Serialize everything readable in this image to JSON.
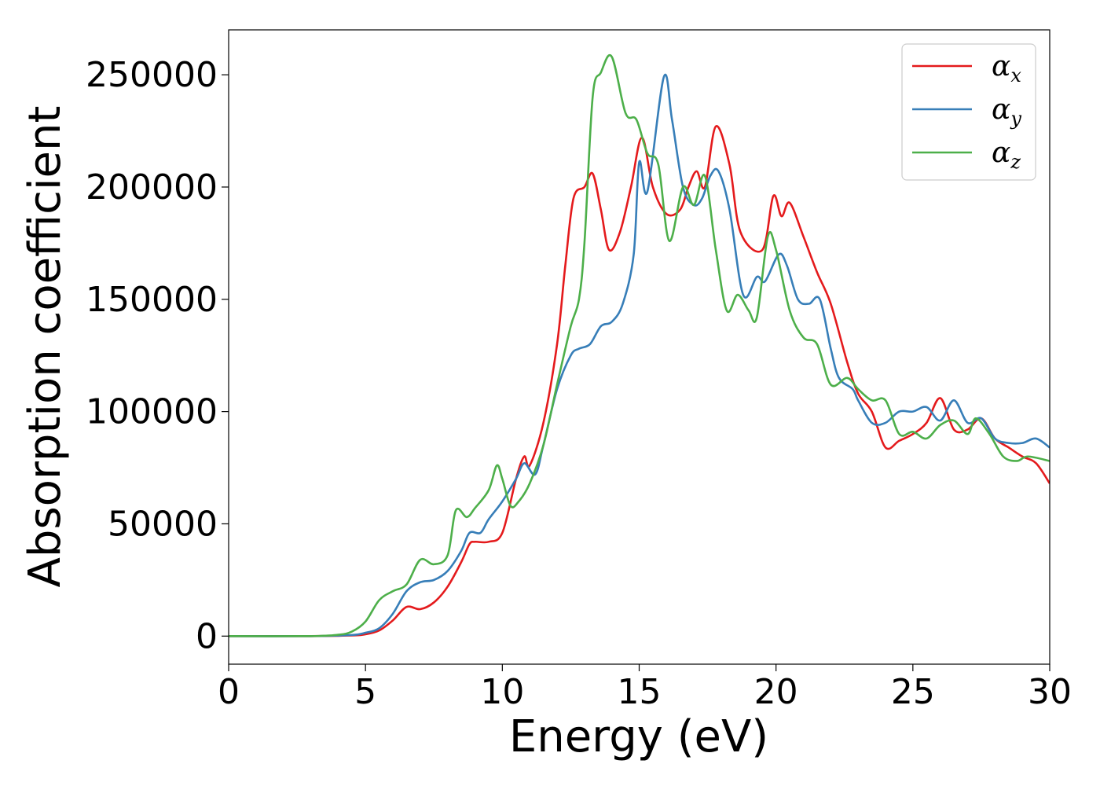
{
  "chart_data": {
    "type": "line",
    "xlabel": "Energy (eV)",
    "ylabel": "Absorption coefficient",
    "xlim": [
      0,
      30
    ],
    "ylim": [
      -12500,
      270000
    ],
    "xticks": [
      0,
      5,
      10,
      15,
      20,
      25,
      30
    ],
    "xtick_labels": [
      "0",
      "5",
      "10",
      "15",
      "20",
      "25",
      "30"
    ],
    "yticks": [
      0,
      50000,
      100000,
      150000,
      200000,
      250000
    ],
    "ytick_labels": [
      "0",
      "50000",
      "100000",
      "150000",
      "200000",
      "250000"
    ],
    "grid": false,
    "legend_position": "top-right",
    "series": [
      {
        "name": "α",
        "subscript": "x",
        "color": "#e41a1c",
        "points": [
          [
            0,
            0
          ],
          [
            3,
            0
          ],
          [
            4.5,
            300
          ],
          [
            5,
            800
          ],
          [
            5.5,
            2500
          ],
          [
            6,
            7000
          ],
          [
            6.5,
            13000
          ],
          [
            7,
            12000
          ],
          [
            7.5,
            15000
          ],
          [
            8,
            22000
          ],
          [
            8.5,
            33000
          ],
          [
            8.8,
            41000
          ],
          [
            9,
            42000
          ],
          [
            9.5,
            42000
          ],
          [
            10,
            46000
          ],
          [
            10.5,
            70000
          ],
          [
            10.8,
            80000
          ],
          [
            11,
            76000
          ],
          [
            11.5,
            95000
          ],
          [
            12,
            130000
          ],
          [
            12.3,
            165000
          ],
          [
            12.6,
            195000
          ],
          [
            13,
            200000
          ],
          [
            13.3,
            206000
          ],
          [
            13.6,
            190000
          ],
          [
            13.9,
            172000
          ],
          [
            14.3,
            180000
          ],
          [
            14.7,
            200000
          ],
          [
            15.1,
            222000
          ],
          [
            15.5,
            200000
          ],
          [
            16,
            188000
          ],
          [
            16.5,
            190000
          ],
          [
            16.8,
            200000
          ],
          [
            17.1,
            207000
          ],
          [
            17.4,
            200000
          ],
          [
            17.8,
            227000
          ],
          [
            18.3,
            210000
          ],
          [
            18.7,
            180000
          ],
          [
            19.5,
            172000
          ],
          [
            19.9,
            196000
          ],
          [
            20.2,
            187000
          ],
          [
            20.5,
            193000
          ],
          [
            21,
            178000
          ],
          [
            21.5,
            162000
          ],
          [
            22,
            148000
          ],
          [
            22.6,
            122000
          ],
          [
            23,
            108000
          ],
          [
            23.5,
            100000
          ],
          [
            24,
            84000
          ],
          [
            24.5,
            87000
          ],
          [
            25,
            90000
          ],
          [
            25.5,
            95000
          ],
          [
            26,
            106000
          ],
          [
            26.5,
            92000
          ],
          [
            27,
            92000
          ],
          [
            27.5,
            97000
          ],
          [
            28,
            88000
          ],
          [
            28.5,
            84000
          ],
          [
            29,
            80000
          ],
          [
            29.5,
            77000
          ],
          [
            30,
            68000
          ]
        ]
      },
      {
        "name": "α",
        "subscript": "y",
        "color": "#377eb8",
        "points": [
          [
            0,
            0
          ],
          [
            3,
            0
          ],
          [
            4.5,
            500
          ],
          [
            5,
            1500
          ],
          [
            5.5,
            3500
          ],
          [
            6,
            10000
          ],
          [
            6.5,
            20000
          ],
          [
            7,
            24000
          ],
          [
            7.5,
            25000
          ],
          [
            8,
            29000
          ],
          [
            8.5,
            38000
          ],
          [
            8.8,
            46000
          ],
          [
            9.2,
            46000
          ],
          [
            9.5,
            52000
          ],
          [
            10,
            60000
          ],
          [
            10.5,
            70000
          ],
          [
            10.8,
            77000
          ],
          [
            11.2,
            72000
          ],
          [
            11.5,
            85000
          ],
          [
            12,
            110000
          ],
          [
            12.5,
            125000
          ],
          [
            12.8,
            128000
          ],
          [
            13.2,
            130000
          ],
          [
            13.6,
            138000
          ],
          [
            14,
            140000
          ],
          [
            14.4,
            148000
          ],
          [
            14.8,
            170000
          ],
          [
            15,
            211000
          ],
          [
            15.3,
            198000
          ],
          [
            15.9,
            249000
          ],
          [
            16.2,
            230000
          ],
          [
            16.6,
            200000
          ],
          [
            17,
            192000
          ],
          [
            17.3,
            195000
          ],
          [
            17.6,
            205000
          ],
          [
            17.9,
            207000
          ],
          [
            18.3,
            190000
          ],
          [
            18.8,
            152000
          ],
          [
            19.3,
            160000
          ],
          [
            19.6,
            158000
          ],
          [
            20.1,
            170000
          ],
          [
            20.4,
            165000
          ],
          [
            20.8,
            150000
          ],
          [
            21.2,
            148000
          ],
          [
            21.6,
            150000
          ],
          [
            22,
            128000
          ],
          [
            22.3,
            115000
          ],
          [
            22.8,
            110000
          ],
          [
            23,
            105000
          ],
          [
            23.5,
            95000
          ],
          [
            24,
            95000
          ],
          [
            24.5,
            100000
          ],
          [
            25,
            100000
          ],
          [
            25.5,
            102000
          ],
          [
            26,
            96000
          ],
          [
            26.5,
            105000
          ],
          [
            27,
            95000
          ],
          [
            27.5,
            97000
          ],
          [
            28,
            88000
          ],
          [
            28.5,
            86000
          ],
          [
            29,
            86000
          ],
          [
            29.5,
            88000
          ],
          [
            30,
            84000
          ]
        ]
      },
      {
        "name": "α",
        "subscript": "z",
        "color": "#4daf4a",
        "points": [
          [
            0,
            0
          ],
          [
            3,
            0
          ],
          [
            4,
            600
          ],
          [
            4.5,
            2000
          ],
          [
            5,
            6500
          ],
          [
            5.5,
            16000
          ],
          [
            6,
            20000
          ],
          [
            6.5,
            23000
          ],
          [
            7,
            34000
          ],
          [
            7.5,
            32000
          ],
          [
            8,
            36000
          ],
          [
            8.3,
            56000
          ],
          [
            8.7,
            53000
          ],
          [
            9,
            57000
          ],
          [
            9.5,
            65000
          ],
          [
            9.8,
            76000
          ],
          [
            10,
            70000
          ],
          [
            10.3,
            58000
          ],
          [
            10.6,
            60000
          ],
          [
            11,
            68000
          ],
          [
            11.5,
            85000
          ],
          [
            12,
            112000
          ],
          [
            12.5,
            138000
          ],
          [
            12.8,
            150000
          ],
          [
            13,
            175000
          ],
          [
            13.3,
            240000
          ],
          [
            13.6,
            251000
          ],
          [
            14,
            258000
          ],
          [
            14.5,
            233000
          ],
          [
            14.9,
            230000
          ],
          [
            15.3,
            215000
          ],
          [
            15.7,
            210000
          ],
          [
            16.1,
            176000
          ],
          [
            16.6,
            200000
          ],
          [
            17,
            192000
          ],
          [
            17.4,
            205000
          ],
          [
            17.8,
            172000
          ],
          [
            18.2,
            145000
          ],
          [
            18.6,
            152000
          ],
          [
            19,
            145000
          ],
          [
            19.3,
            142000
          ],
          [
            19.7,
            178000
          ],
          [
            20,
            172000
          ],
          [
            20.5,
            145000
          ],
          [
            21,
            133000
          ],
          [
            21.5,
            130000
          ],
          [
            22,
            112000
          ],
          [
            22.6,
            115000
          ],
          [
            23,
            110000
          ],
          [
            23.5,
            105000
          ],
          [
            24,
            105000
          ],
          [
            24.5,
            90000
          ],
          [
            25,
            91000
          ],
          [
            25.5,
            88000
          ],
          [
            26,
            94000
          ],
          [
            26.5,
            96000
          ],
          [
            27,
            90000
          ],
          [
            27.3,
            97000
          ],
          [
            27.8,
            90000
          ],
          [
            28.3,
            80000
          ],
          [
            28.8,
            78000
          ],
          [
            29.2,
            80000
          ],
          [
            30,
            78000
          ]
        ]
      }
    ]
  }
}
